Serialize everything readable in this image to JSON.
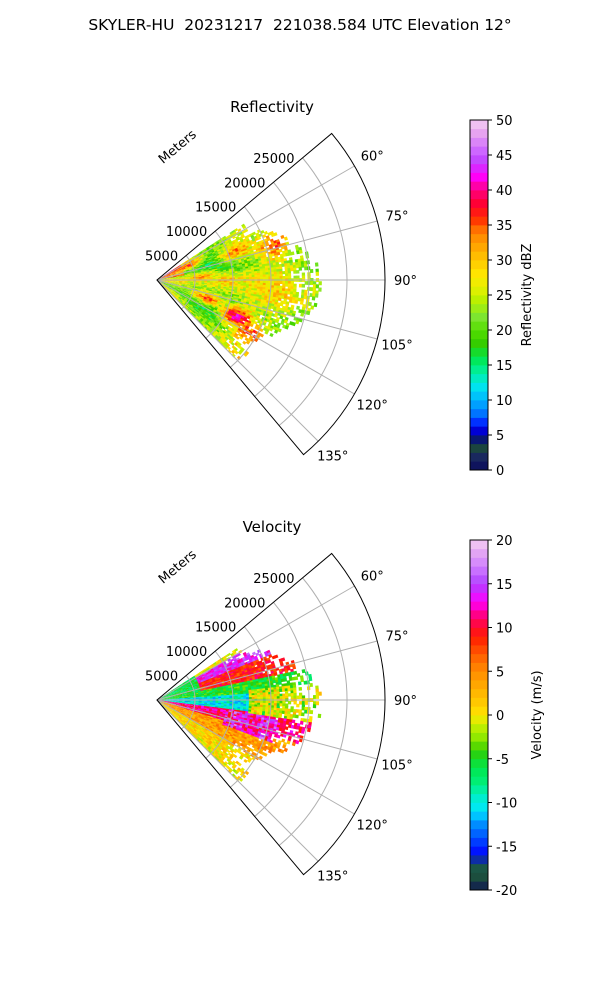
{
  "figure": {
    "title": "SKYLER-HU  20231217  221038.584 UTC Elevation 12°"
  },
  "chart_data": [
    {
      "type": "heatmap",
      "subtype": "polar-sector-radar-ppi",
      "title": "Reflectivity",
      "range_label": "Meters",
      "r_ticks": [
        5000,
        10000,
        15000,
        20000,
        25000
      ],
      "r_max": 30000,
      "theta_ticks": [
        "60°",
        "75°",
        "90°",
        "105°",
        "120°",
        "135°"
      ],
      "theta_range_deg": [
        50,
        140
      ],
      "grid": true,
      "colorbar": {
        "label": "Reflectivity dBZ",
        "ticks": [
          0,
          5,
          10,
          15,
          20,
          25,
          30,
          35,
          40,
          45,
          50
        ],
        "min": 0,
        "max": 50
      },
      "echo_extent_m": [
        0,
        22000
      ],
      "dominant_values": [
        20,
        25,
        30
      ],
      "cells": [
        {
          "az": 65,
          "r": 4000,
          "v": 36
        },
        {
          "az": 70,
          "r": 11000,
          "v": 33
        },
        {
          "az": 73,
          "r": 16000,
          "v": 35
        },
        {
          "az": 68,
          "r": 19000,
          "v": 28
        },
        {
          "az": 86,
          "r": 6000,
          "v": 31
        },
        {
          "az": 90,
          "r": 9000,
          "v": 30
        },
        {
          "az": 95,
          "r": 14000,
          "v": 27
        },
        {
          "az": 110,
          "r": 7000,
          "v": 34
        },
        {
          "az": 115,
          "r": 11500,
          "v": 40
        },
        {
          "az": 120,
          "r": 14000,
          "v": 36
        },
        {
          "az": 100,
          "r": 18000,
          "v": 22
        },
        {
          "az": 125,
          "r": 18000,
          "v": 24
        }
      ]
    },
    {
      "type": "heatmap",
      "subtype": "polar-sector-radar-ppi",
      "title": "Velocity",
      "range_label": "Meters",
      "r_ticks": [
        5000,
        10000,
        15000,
        20000,
        25000
      ],
      "r_max": 30000,
      "theta_ticks": [
        "60°",
        "75°",
        "90°",
        "105°",
        "120°",
        "135°"
      ],
      "theta_range_deg": [
        50,
        140
      ],
      "grid": true,
      "colorbar": {
        "label": "Velocity (m/s)",
        "ticks": [
          -20,
          -15,
          -10,
          -5,
          0,
          5,
          10,
          15,
          20
        ],
        "min": -20,
        "max": 20
      },
      "echo_extent_m": [
        0,
        22000
      ],
      "pattern": [
        {
          "az_range": [
            60,
            68
          ],
          "v": 14
        },
        {
          "az_range": [
            68,
            78
          ],
          "v": 9
        },
        {
          "az_range": [
            78,
            86
          ],
          "v": -5
        },
        {
          "az_range": [
            86,
            97
          ],
          "v": -10
        },
        {
          "az_range": [
            97,
            107
          ],
          "v": 11
        },
        {
          "az_range": [
            107,
            120
          ],
          "v": 4
        },
        {
          "az_range": [
            120,
            130
          ],
          "v": 1
        }
      ]
    }
  ]
}
